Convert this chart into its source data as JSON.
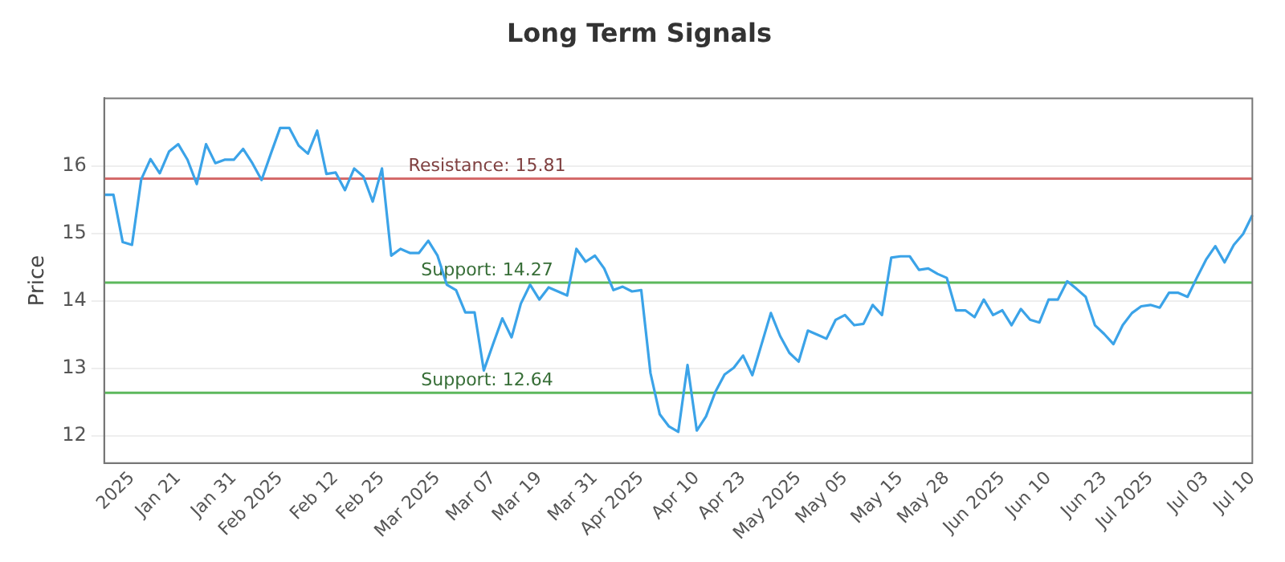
{
  "chart_data": {
    "type": "line",
    "title": "Long Term Signals",
    "ylabel": "Price",
    "categories": [
      null,
      null,
      null,
      "2025",
      null,
      null,
      null,
      null,
      "Jan 21",
      null,
      null,
      null,
      null,
      null,
      "Jan 31",
      null,
      null,
      null,
      null,
      "Feb 2025",
      null,
      null,
      null,
      null,
      null,
      "Feb 12",
      null,
      null,
      null,
      null,
      "Feb 25",
      null,
      null,
      null,
      null,
      null,
      "Mar 2025",
      null,
      null,
      null,
      null,
      null,
      "Mar 07",
      null,
      null,
      null,
      null,
      "Mar 19",
      null,
      null,
      null,
      null,
      null,
      "Mar 31",
      null,
      null,
      null,
      null,
      "Apr 2025",
      null,
      null,
      null,
      null,
      null,
      "Apr 10",
      null,
      null,
      null,
      null,
      "Apr 23",
      null,
      null,
      null,
      null,
      null,
      "May 2025",
      null,
      null,
      null,
      null,
      "May 05",
      null,
      null,
      null,
      null,
      null,
      "May 15",
      null,
      null,
      null,
      null,
      "May 28",
      null,
      null,
      null,
      null,
      null,
      "Jun 2025",
      null,
      null,
      null,
      null,
      "Jun 10",
      null,
      null,
      null,
      null,
      null,
      "Jun 23",
      null,
      null,
      null,
      null,
      "Jul 2025",
      null,
      null,
      null,
      null,
      null,
      "Jul 03",
      null,
      null,
      null,
      null,
      "Jul 10"
    ],
    "series": [
      {
        "color": "#3ba3e8",
        "values": [
          15.57,
          15.57,
          14.87,
          14.83,
          15.8,
          16.1,
          15.89,
          16.21,
          16.32,
          16.09,
          15.73,
          16.32,
          16.04,
          16.09,
          16.09,
          16.25,
          16.04,
          15.79,
          16.18,
          16.56,
          16.56,
          16.3,
          16.18,
          16.52,
          15.88,
          15.9,
          15.64,
          15.96,
          15.84,
          15.47,
          15.96,
          14.67,
          14.77,
          14.71,
          14.71,
          14.89,
          14.67,
          14.24,
          14.16,
          13.83,
          13.83,
          12.97,
          13.36,
          13.74,
          13.46,
          13.96,
          14.24,
          14.02,
          14.2,
          14.14,
          14.08,
          14.77,
          14.58,
          14.67,
          14.48,
          14.16,
          14.21,
          14.14,
          14.16,
          12.93,
          12.32,
          12.14,
          12.06,
          13.05,
          12.08,
          12.29,
          12.65,
          12.91,
          13.01,
          13.19,
          12.9,
          13.36,
          13.82,
          13.48,
          13.23,
          13.1,
          13.56,
          13.5,
          13.44,
          13.72,
          13.79,
          13.64,
          13.66,
          13.94,
          13.79,
          14.64,
          14.66,
          14.66,
          14.46,
          14.48,
          14.4,
          14.34,
          13.86,
          13.86,
          13.76,
          14.02,
          13.79,
          13.86,
          13.64,
          13.88,
          13.72,
          13.68,
          14.02,
          14.02,
          14.29,
          14.18,
          14.06,
          13.64,
          13.51,
          13.36,
          13.64,
          13.82,
          13.92,
          13.94,
          13.9,
          14.12,
          14.12,
          14.06,
          14.34,
          14.61,
          14.81,
          14.57,
          14.83,
          14.99,
          15.27
        ]
      }
    ],
    "ylim": [
      11.6,
      17
    ],
    "yticks": [
      12,
      13,
      14,
      15,
      16
    ],
    "ref_lines": [
      {
        "axis": "y",
        "value": 15.81,
        "label": "Resistance: 15.81",
        "color": "#d46a6a"
      },
      {
        "axis": "y",
        "value": 14.27,
        "label": "Support: 14.27",
        "color": "#5cb85c"
      },
      {
        "axis": "y",
        "value": 12.64,
        "label": "Support: 12.64",
        "color": "#5cb85c"
      }
    ],
    "grid": "y",
    "legend": false,
    "marker": "none",
    "line_style": "solid"
  }
}
